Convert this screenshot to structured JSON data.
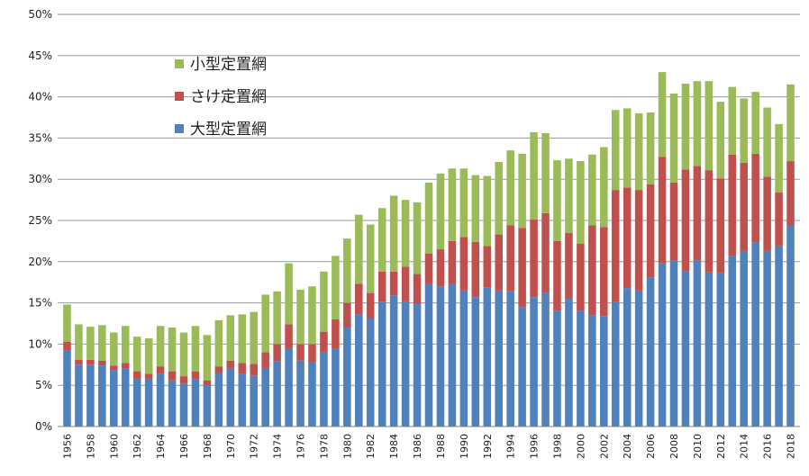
{
  "chart_data": {
    "type": "bar",
    "stacked": true,
    "grid": true,
    "legend_position": "top-left",
    "ylim": [
      0,
      50
    ],
    "yticks": [
      "0%",
      "5%",
      "10%",
      "15%",
      "20%",
      "25%",
      "30%",
      "35%",
      "40%",
      "45%",
      "50%"
    ],
    "categories": [
      "1956",
      "1957",
      "1958",
      "1959",
      "1960",
      "1961",
      "1962",
      "1963",
      "1964",
      "1965",
      "1966",
      "1967",
      "1968",
      "1969",
      "1970",
      "1971",
      "1972",
      "1973",
      "1974",
      "1975",
      "1976",
      "1977",
      "1978",
      "1979",
      "1980",
      "1981",
      "1982",
      "1983",
      "1984",
      "1985",
      "1986",
      "1987",
      "1988",
      "1989",
      "1990",
      "1991",
      "1992",
      "1993",
      "1994",
      "1995",
      "1996",
      "1997",
      "1998",
      "1999",
      "2000",
      "2001",
      "2002",
      "2003",
      "2004",
      "2005",
      "2006",
      "2007",
      "2008",
      "2009",
      "2010",
      "2011",
      "2012",
      "2013",
      "2014",
      "2015",
      "2016",
      "2017",
      "2018"
    ],
    "xtick_labels": [
      "1956",
      "1958",
      "1960",
      "1962",
      "1964",
      "1966",
      "1968",
      "1970",
      "1972",
      "1974",
      "1976",
      "1978",
      "1980",
      "1982",
      "1984",
      "1986",
      "1988",
      "1990",
      "1992",
      "1994",
      "1996",
      "1998",
      "2000",
      "2002",
      "2004",
      "2006",
      "2008",
      "2010",
      "2012",
      "2014",
      "2016",
      "2018"
    ],
    "series": [
      {
        "name": "大型定置網",
        "color": "#4f81bd",
        "values": [
          9.2,
          7.5,
          7.5,
          7.4,
          6.8,
          7.0,
          5.8,
          5.8,
          6.4,
          5.6,
          5.2,
          5.7,
          5.0,
          6.5,
          7.0,
          6.4,
          6.2,
          7.1,
          7.9,
          9.4,
          8.0,
          7.8,
          9.0,
          9.4,
          12.0,
          13.6,
          13.1,
          15.1,
          15.9,
          15.2,
          14.9,
          17.3,
          17.0,
          17.3,
          16.5,
          15.7,
          16.9,
          16.5,
          16.4,
          14.5,
          15.7,
          16.2,
          14.0,
          15.5,
          14.0,
          13.5,
          13.4,
          15.1,
          16.8,
          16.5,
          18.1,
          19.8,
          20.1,
          18.8,
          20.2,
          18.7,
          18.6,
          20.7,
          21.3,
          22.3,
          21.3,
          21.9,
          24.4
        ]
      },
      {
        "name": "さけ定置網",
        "color": "#c0504d",
        "values": [
          1.1,
          0.6,
          0.6,
          0.6,
          0.6,
          0.7,
          0.9,
          0.6,
          0.9,
          1.1,
          0.9,
          1.0,
          0.6,
          0.8,
          1.0,
          1.3,
          1.4,
          1.9,
          2.1,
          3.0,
          2.0,
          2.2,
          2.5,
          3.6,
          3.0,
          3.7,
          3.1,
          3.7,
          2.9,
          4.2,
          3.6,
          3.7,
          4.5,
          5.2,
          6.5,
          6.7,
          5.0,
          6.8,
          8.0,
          9.6,
          9.4,
          9.7,
          8.5,
          8.0,
          8.2,
          10.9,
          10.8,
          13.6,
          12.2,
          12.2,
          11.3,
          12.9,
          9.5,
          12.4,
          11.4,
          12.4,
          11.5,
          12.3,
          10.7,
          10.8,
          9.0,
          6.5,
          7.8
        ]
      },
      {
        "name": "小型定置網",
        "color": "#9bbb59",
        "values": [
          4.5,
          4.3,
          4.0,
          4.3,
          4.0,
          4.5,
          4.2,
          4.3,
          4.9,
          5.3,
          5.3,
          5.5,
          5.5,
          5.6,
          5.5,
          5.9,
          6.3,
          7.0,
          6.4,
          7.4,
          6.6,
          7.0,
          7.3,
          7.7,
          7.8,
          8.4,
          8.3,
          7.7,
          9.2,
          8.1,
          8.7,
          8.6,
          9.2,
          8.8,
          8.3,
          8.1,
          8.5,
          8.8,
          9.1,
          9.0,
          10.6,
          9.7,
          9.8,
          9.0,
          10.0,
          8.6,
          9.7,
          9.7,
          9.6,
          9.3,
          8.7,
          10.3,
          10.8,
          10.4,
          10.3,
          10.8,
          9.3,
          8.2,
          7.8,
          7.5,
          8.4,
          8.3,
          9.3
        ]
      }
    ]
  }
}
